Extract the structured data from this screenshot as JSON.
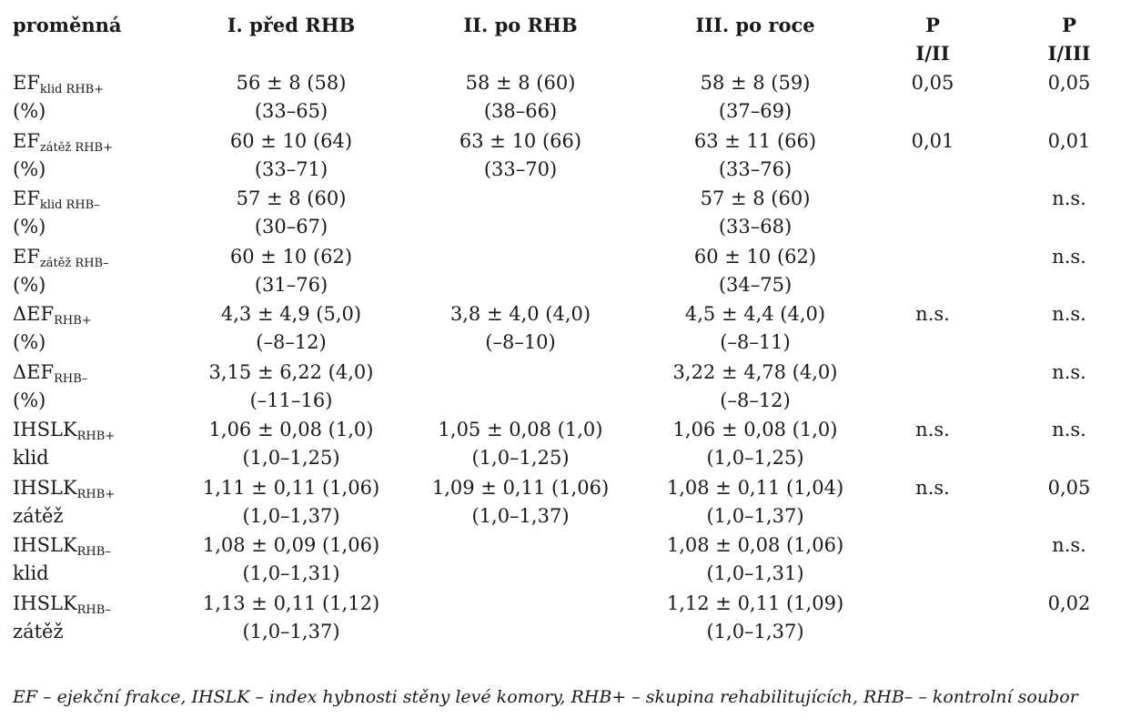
{
  "header": {
    "var": "proměnná",
    "c1": "I. před RHB",
    "c2": "II. po RHB",
    "c3": "III. po roce",
    "c4a": "P",
    "c4b": "I/II",
    "c5a": "P",
    "c5b": "I/III"
  },
  "rows": [
    {
      "var_main": "EF",
      "var_sub": "klid RHB+",
      "var_line2": "(%)",
      "c1a": "56 ± 8 (58)",
      "c1b": "(33–65)",
      "c2a": "58 ± 8 (60)",
      "c2b": "(38–66)",
      "c3a": "58 ± 8 (59)",
      "c3b": "(37–69)",
      "p12": "0,05",
      "p13": "0,05"
    },
    {
      "var_main": "EF",
      "var_sub": "zátěž RHB+",
      "var_line2": "(%)",
      "c1a": "60 ± 10 (64)",
      "c1b": "(33–71)",
      "c2a": "63 ± 10 (66)",
      "c2b": "(33–70)",
      "c3a": "63 ± 11 (66)",
      "c3b": "(33–76)",
      "p12": "0,01",
      "p13": "0,01"
    },
    {
      "var_main": "EF",
      "var_sub": "klid RHB–",
      "var_line2": "(%)",
      "c1a": "57 ± 8 (60)",
      "c1b": "(30–67)",
      "c2a": "",
      "c2b": "",
      "c3a": "57 ± 8 (60)",
      "c3b": "(33–68)",
      "p12": "",
      "p13": "n.s."
    },
    {
      "var_main": "EF",
      "var_sub": "zátěž RHB–",
      "var_line2": "(%)",
      "c1a": "60 ± 10 (62)",
      "c1b": "(31–76)",
      "c2a": "",
      "c2b": "",
      "c3a": "60 ± 10 (62)",
      "c3b": "(34–75)",
      "p12": "",
      "p13": "n.s."
    },
    {
      "var_main": "ΔEF",
      "var_sub": "RHB+",
      "var_line2": "(%)",
      "c1a": "4,3 ± 4,9 (5,0)",
      "c1b": "(–8–12)",
      "c2a": "3,8 ± 4,0 (4,0)",
      "c2b": "(–8–10)",
      "c3a": "4,5 ± 4,4 (4,0)",
      "c3b": "(–8–11)",
      "p12": "n.s.",
      "p13": "n.s."
    },
    {
      "var_main": "ΔEF",
      "var_sub": "RHB–",
      "var_line2": "(%)",
      "c1a": "3,15 ± 6,22 (4,0)",
      "c1b": "(–11–16)",
      "c2a": "",
      "c2b": "",
      "c3a": "3,22 ± 4,78 (4,0)",
      "c3b": "(–8–12)",
      "p12": "",
      "p13": "n.s."
    },
    {
      "var_main": "IHSLK",
      "var_sub": "RHB+",
      "var_line2": "klid",
      "c1a": "1,06 ± 0,08 (1,0)",
      "c1b": "(1,0–1,25)",
      "c2a": "1,05 ± 0,08 (1,0)",
      "c2b": "(1,0–1,25)",
      "c3a": "1,06 ± 0,08 (1,0)",
      "c3b": "(1,0–1,25)",
      "p12": "n.s.",
      "p13": "n.s."
    },
    {
      "var_main": "IHSLK",
      "var_sub": "RHB+",
      "var_line2": "zátěž",
      "c1a": "1,11 ± 0,11 (1,06)",
      "c1b": "(1,0–1,37)",
      "c2a": "1,09 ± 0,11 (1,06)",
      "c2b": "(1,0–1,37)",
      "c3a": "1,08 ± 0,11 (1,04)",
      "c3b": "(1,0–1,37)",
      "p12": "n.s.",
      "p13": "0,05"
    },
    {
      "var_main": "IHSLK",
      "var_sub": "RHB–",
      "var_line2": "klid",
      "c1a": "1,08 ± 0,09 (1,06)",
      "c1b": "(1,0–1,31)",
      "c2a": "",
      "c2b": "",
      "c3a": "1,08 ± 0,08 (1,06)",
      "c3b": "(1,0–1,31)",
      "p12": "",
      "p13": "n.s."
    },
    {
      "var_main": "IHSLK",
      "var_sub": "RHB–",
      "var_line2": "zátěž",
      "c1a": "1,13 ± 0,11 (1,12)",
      "c1b": "(1,0–1,37)",
      "c2a": "",
      "c2b": "",
      "c3a": "1,12 ± 0,11 (1,09)",
      "c3b": "(1,0–1,37)",
      "p12": "",
      "p13": "0,02"
    }
  ],
  "footnote": "EF – ejekční frakce, IHSLK – index hybnosti stěny levé komory, RHB+ – skupina rehabilitujících, RHB– – kontrolní soubor"
}
